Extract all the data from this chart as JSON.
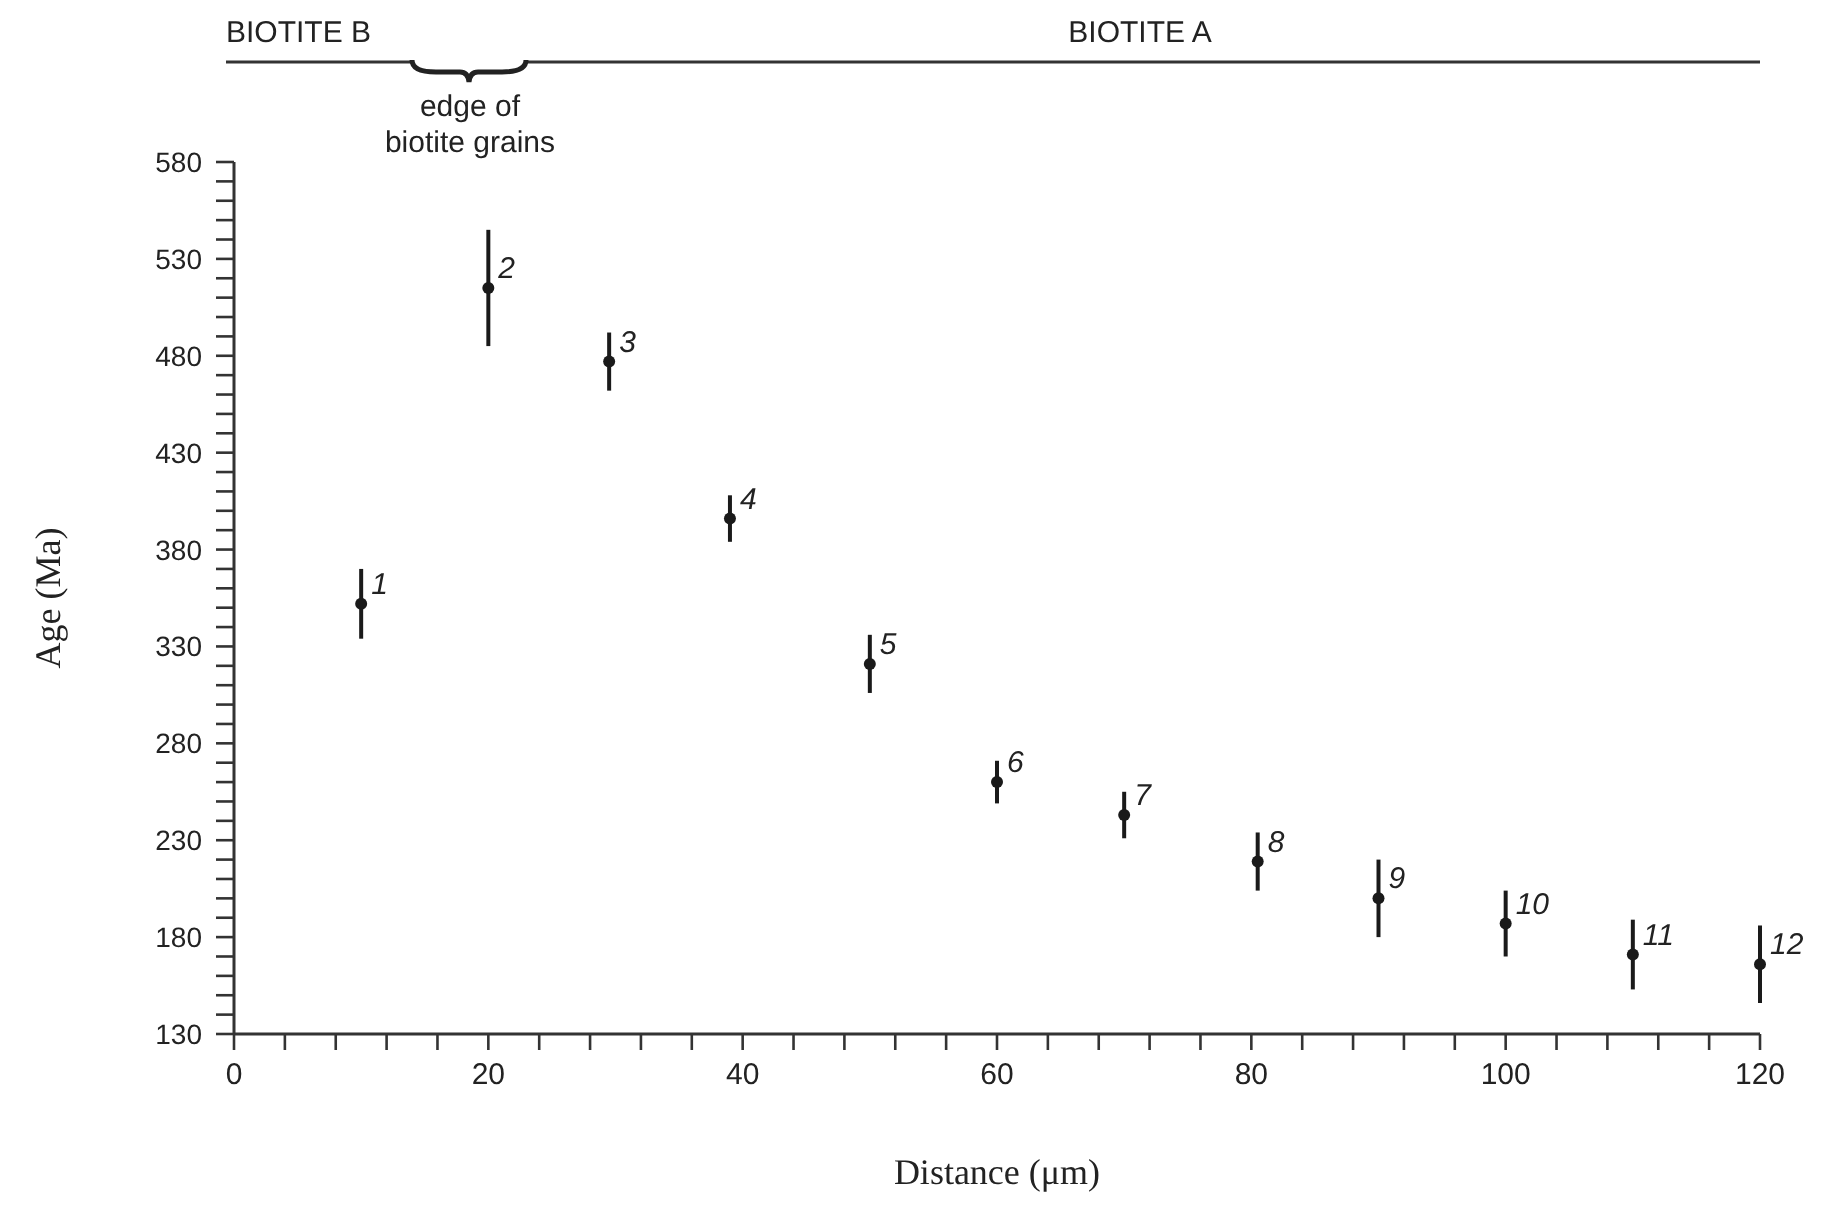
{
  "chart_data": {
    "type": "scatter",
    "xlabel": "Distance (μm)",
    "ylabel": "Age (Ma)",
    "x": [
      10,
      20,
      29.5,
      39,
      50,
      60,
      70,
      80.5,
      90,
      100,
      110,
      120
    ],
    "values": [
      352,
      515,
      477,
      396,
      321,
      260,
      243,
      219,
      200,
      187,
      171,
      166
    ],
    "errors": [
      18,
      30,
      15,
      12,
      15,
      11,
      12,
      15,
      20,
      17,
      18,
      20
    ],
    "color": "#1a1a1a",
    "marker": "circle",
    "grid": false,
    "xlim": [
      0,
      120
    ],
    "ylim": [
      130,
      580
    ],
    "xticks": [
      0,
      {
        "value": 4,
        "label": null
      },
      {
        "value": 8,
        "label": null
      },
      {
        "value": 12,
        "label": null
      },
      {
        "value": 16,
        "label": null
      },
      20,
      {
        "value": 24,
        "label": null
      },
      {
        "value": 28,
        "label": null
      },
      {
        "value": 32,
        "label": null
      },
      {
        "value": 36,
        "label": null
      },
      40,
      {
        "value": 44,
        "label": null
      },
      {
        "value": 48,
        "label": null
      },
      {
        "value": 52,
        "label": null
      },
      {
        "value": 56,
        "label": null
      },
      60,
      {
        "value": 64,
        "label": null
      },
      {
        "value": 68,
        "label": null
      },
      {
        "value": 72,
        "label": null
      },
      {
        "value": 76,
        "label": null
      },
      80,
      {
        "value": 84,
        "label": null
      },
      {
        "value": 88,
        "label": null
      },
      {
        "value": 92,
        "label": null
      },
      {
        "value": 96,
        "label": null
      },
      100,
      {
        "value": 104,
        "label": null
      },
      {
        "value": 108,
        "label": null
      },
      {
        "value": 112,
        "label": null
      },
      {
        "value": 116,
        "label": null
      },
      120
    ],
    "yticks": [
      130,
      {
        "value": 140,
        "label": null
      },
      {
        "value": 150,
        "label": null
      },
      {
        "value": 160,
        "label": null
      },
      {
        "value": 170,
        "label": null
      },
      180,
      {
        "value": 190,
        "label": null
      },
      {
        "value": 200,
        "label": null
      },
      {
        "value": 210,
        "label": null
      },
      {
        "value": 220,
        "label": null
      },
      230,
      {
        "value": 240,
        "label": null
      },
      {
        "value": 250,
        "label": null
      },
      {
        "value": 260,
        "label": null
      },
      {
        "value": 270,
        "label": null
      },
      280,
      {
        "value": 290,
        "label": null
      },
      {
        "value": 300,
        "label": null
      },
      {
        "value": 310,
        "label": null
      },
      {
        "value": 320,
        "label": null
      },
      330,
      {
        "value": 340,
        "label": null
      },
      {
        "value": 350,
        "label": null
      },
      {
        "value": 360,
        "label": null
      },
      {
        "value": 370,
        "label": null
      },
      380,
      {
        "value": 390,
        "label": null
      },
      {
        "value": 400,
        "label": null
      },
      {
        "value": 410,
        "label": null
      },
      {
        "value": 420,
        "label": null
      },
      430,
      {
        "value": 440,
        "label": null
      },
      {
        "value": 450,
        "label": null
      },
      {
        "value": 460,
        "label": null
      },
      {
        "value": 470,
        "label": null
      },
      480,
      {
        "value": 490,
        "label": null
      },
      {
        "value": 500,
        "label": null
      },
      {
        "value": 510,
        "label": null
      },
      {
        "value": 520,
        "label": null
      },
      530,
      {
        "value": 540,
        "label": null
      },
      {
        "value": 550,
        "label": null
      },
      {
        "value": 560,
        "label": null
      },
      {
        "value": 570,
        "label": null
      },
      580
    ],
    "annotations": [
      {
        "text": "1",
        "x": 10,
        "y": 352
      },
      {
        "text": "2",
        "x": 20,
        "y": 515
      },
      {
        "text": "3",
        "x": 29.5,
        "y": 477
      },
      {
        "text": "4",
        "x": 39,
        "y": 396
      },
      {
        "text": "5",
        "x": 50,
        "y": 321
      },
      {
        "text": "6",
        "x": 60,
        "y": 260
      },
      {
        "text": "7",
        "x": 70,
        "y": 243
      },
      {
        "text": "8",
        "x": 80.5,
        "y": 219
      },
      {
        "text": "9",
        "x": 90,
        "y": 200
      },
      {
        "text": "10",
        "x": 100,
        "y": 187
      },
      {
        "text": "11",
        "x": 110,
        "y": 171
      },
      {
        "text": "12",
        "x": 120,
        "y": 166
      },
      "BIOTITE B",
      "BIOTITE A",
      "edge of biotite grains"
    ]
  }
}
